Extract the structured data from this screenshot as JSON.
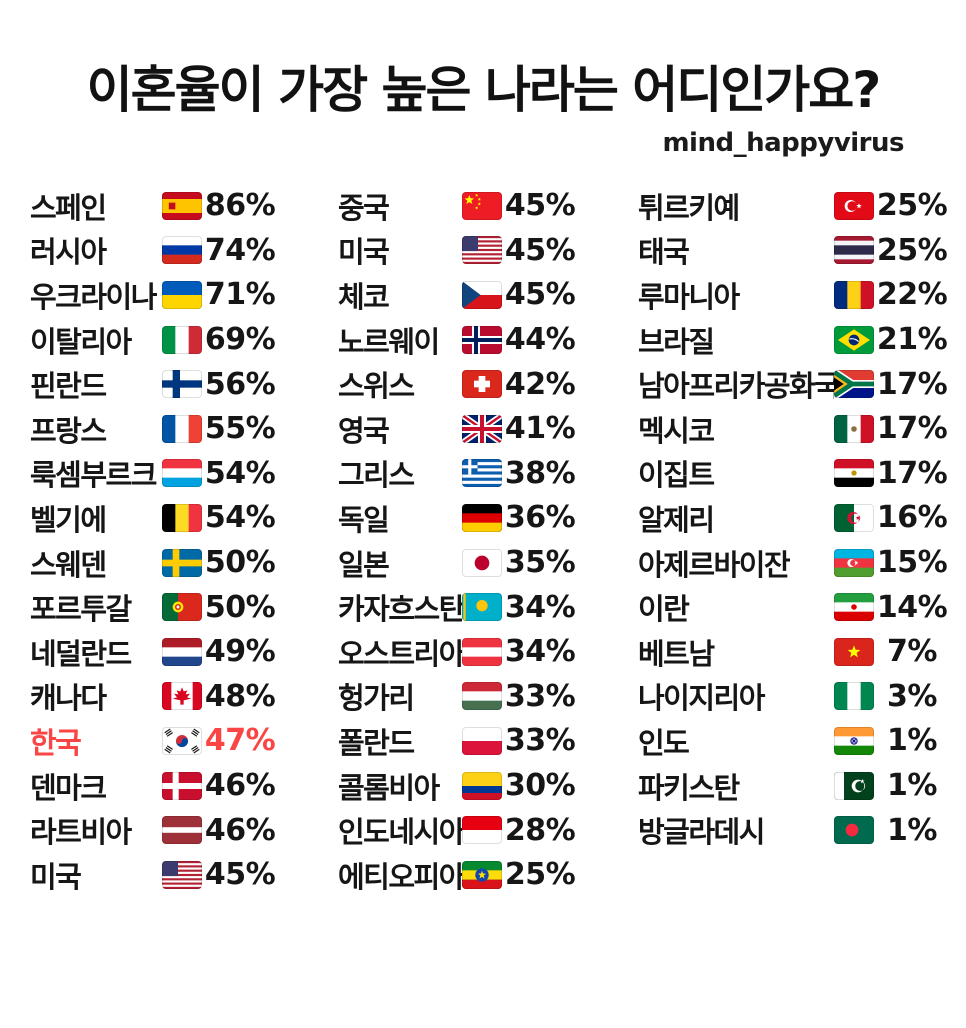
{
  "page": {
    "background": "#ffffff",
    "text_color": "#161616",
    "highlight_color": "#fa4545"
  },
  "header": {
    "title": "이혼율이 가장 높은 나라는 어디인가요?",
    "credit": "mind_happyvirus"
  },
  "chart_data": {
    "type": "table",
    "title": "이혼율이 가장 높은 나라는 어디인가요?",
    "unit": "%",
    "legend_position": "none",
    "column_sizes": [
      16,
      16,
      15
    ],
    "highlighted_row": "한국",
    "rows": [
      {
        "country": "스페인",
        "flag": "es",
        "flag_name": "spain-flag",
        "value": 86,
        "value_label": "86%"
      },
      {
        "country": "러시아",
        "flag": "ru",
        "flag_name": "russia-flag",
        "value": 74,
        "value_label": "74%"
      },
      {
        "country": "우크라이나",
        "flag": "ua",
        "flag_name": "ukraine-flag",
        "value": 71,
        "value_label": "71%"
      },
      {
        "country": "이탈리아",
        "flag": "it",
        "flag_name": "italy-flag",
        "value": 69,
        "value_label": "69%"
      },
      {
        "country": "핀란드",
        "flag": "fi",
        "flag_name": "finland-flag",
        "value": 56,
        "value_label": "56%"
      },
      {
        "country": "프랑스",
        "flag": "fr",
        "flag_name": "france-flag",
        "value": 55,
        "value_label": "55%"
      },
      {
        "country": "룩셈부르크",
        "flag": "lu",
        "flag_name": "luxembourg-flag",
        "value": 54,
        "value_label": "54%"
      },
      {
        "country": "벨기에",
        "flag": "be",
        "flag_name": "belgium-flag",
        "value": 54,
        "value_label": "54%"
      },
      {
        "country": "스웨덴",
        "flag": "se",
        "flag_name": "sweden-flag",
        "value": 50,
        "value_label": "50%"
      },
      {
        "country": "포르투갈",
        "flag": "pt",
        "flag_name": "portugal-flag",
        "value": 50,
        "value_label": "50%"
      },
      {
        "country": "네덜란드",
        "flag": "nl",
        "flag_name": "netherlands-flag",
        "value": 49,
        "value_label": "49%"
      },
      {
        "country": "캐나다",
        "flag": "ca",
        "flag_name": "canada-flag",
        "value": 48,
        "value_label": "48%"
      },
      {
        "country": "한국",
        "flag": "kr",
        "flag_name": "south-korea-flag",
        "value": 47,
        "value_label": "47%",
        "highlight": true
      },
      {
        "country": "덴마크",
        "flag": "dk",
        "flag_name": "denmark-flag",
        "value": 46,
        "value_label": "46%"
      },
      {
        "country": "라트비아",
        "flag": "lv",
        "flag_name": "latvia-flag",
        "value": 46,
        "value_label": "46%"
      },
      {
        "country": "미국",
        "flag": "us",
        "flag_name": "usa-flag",
        "value": 45,
        "value_label": "45%"
      },
      {
        "country": "중국",
        "flag": "cn",
        "flag_name": "china-flag",
        "value": 45,
        "value_label": "45%"
      },
      {
        "country": "미국",
        "flag": "us",
        "flag_name": "usa-flag",
        "value": 45,
        "value_label": "45%"
      },
      {
        "country": "체코",
        "flag": "cz",
        "flag_name": "czechia-flag",
        "value": 45,
        "value_label": "45%"
      },
      {
        "country": "노르웨이",
        "flag": "no",
        "flag_name": "norway-flag",
        "value": 44,
        "value_label": "44%"
      },
      {
        "country": "스위스",
        "flag": "ch",
        "flag_name": "switzerland-flag",
        "value": 42,
        "value_label": "42%"
      },
      {
        "country": "영국",
        "flag": "gb",
        "flag_name": "uk-flag",
        "value": 41,
        "value_label": "41%"
      },
      {
        "country": "그리스",
        "flag": "gr",
        "flag_name": "greece-flag",
        "value": 38,
        "value_label": "38%"
      },
      {
        "country": "독일",
        "flag": "de",
        "flag_name": "germany-flag",
        "value": 36,
        "value_label": "36%"
      },
      {
        "country": "일본",
        "flag": "jp",
        "flag_name": "japan-flag",
        "value": 35,
        "value_label": "35%"
      },
      {
        "country": "카자흐스탄",
        "flag": "kz",
        "flag_name": "kazakhstan-flag",
        "value": 34,
        "value_label": "34%"
      },
      {
        "country": "오스트리아",
        "flag": "at",
        "flag_name": "austria-flag",
        "value": 34,
        "value_label": "34%"
      },
      {
        "country": "헝가리",
        "flag": "hu",
        "flag_name": "hungary-flag",
        "value": 33,
        "value_label": "33%"
      },
      {
        "country": "폴란드",
        "flag": "pl",
        "flag_name": "poland-flag",
        "value": 33,
        "value_label": "33%"
      },
      {
        "country": "콜롬비아",
        "flag": "co",
        "flag_name": "colombia-flag",
        "value": 30,
        "value_label": "30%"
      },
      {
        "country": "인도네시아",
        "flag": "id",
        "flag_name": "indonesia-flag",
        "value": 28,
        "value_label": "28%"
      },
      {
        "country": "에티오피아",
        "flag": "et",
        "flag_name": "ethiopia-flag",
        "value": 25,
        "value_label": "25%"
      },
      {
        "country": "튀르키예",
        "flag": "tr",
        "flag_name": "turkey-flag",
        "value": 25,
        "value_label": "25%"
      },
      {
        "country": "태국",
        "flag": "th",
        "flag_name": "thailand-flag",
        "value": 25,
        "value_label": "25%"
      },
      {
        "country": "루마니아",
        "flag": "ro",
        "flag_name": "romania-flag",
        "value": 22,
        "value_label": "22%"
      },
      {
        "country": "브라질",
        "flag": "br",
        "flag_name": "brazil-flag",
        "value": 21,
        "value_label": "21%"
      },
      {
        "country": "남아프리카공화국",
        "flag": "za",
        "flag_name": "south-africa-flag",
        "value": 17,
        "value_label": "17%"
      },
      {
        "country": "멕시코",
        "flag": "mx",
        "flag_name": "mexico-flag",
        "value": 17,
        "value_label": "17%"
      },
      {
        "country": "이집트",
        "flag": "eg",
        "flag_name": "egypt-flag",
        "value": 17,
        "value_label": "17%"
      },
      {
        "country": "알제리",
        "flag": "dz",
        "flag_name": "algeria-flag",
        "value": 16,
        "value_label": "16%"
      },
      {
        "country": "아제르바이잔",
        "flag": "az",
        "flag_name": "azerbaijan-flag",
        "value": 15,
        "value_label": "15%"
      },
      {
        "country": "이란",
        "flag": "ir",
        "flag_name": "iran-flag",
        "value": 14,
        "value_label": "14%"
      },
      {
        "country": "베트남",
        "flag": "vn",
        "flag_name": "vietnam-flag",
        "value": 7,
        "value_label": "7%"
      },
      {
        "country": "나이지리아",
        "flag": "ng",
        "flag_name": "nigeria-flag",
        "value": 3,
        "value_label": "3%"
      },
      {
        "country": "인도",
        "flag": "in",
        "flag_name": "india-flag",
        "value": 1,
        "value_label": "1%"
      },
      {
        "country": "파키스탄",
        "flag": "pk",
        "flag_name": "pakistan-flag",
        "value": 1,
        "value_label": "1%"
      },
      {
        "country": "방글라데시",
        "flag": "bd",
        "flag_name": "bangladesh-flag",
        "value": 1,
        "value_label": "1%"
      }
    ]
  }
}
